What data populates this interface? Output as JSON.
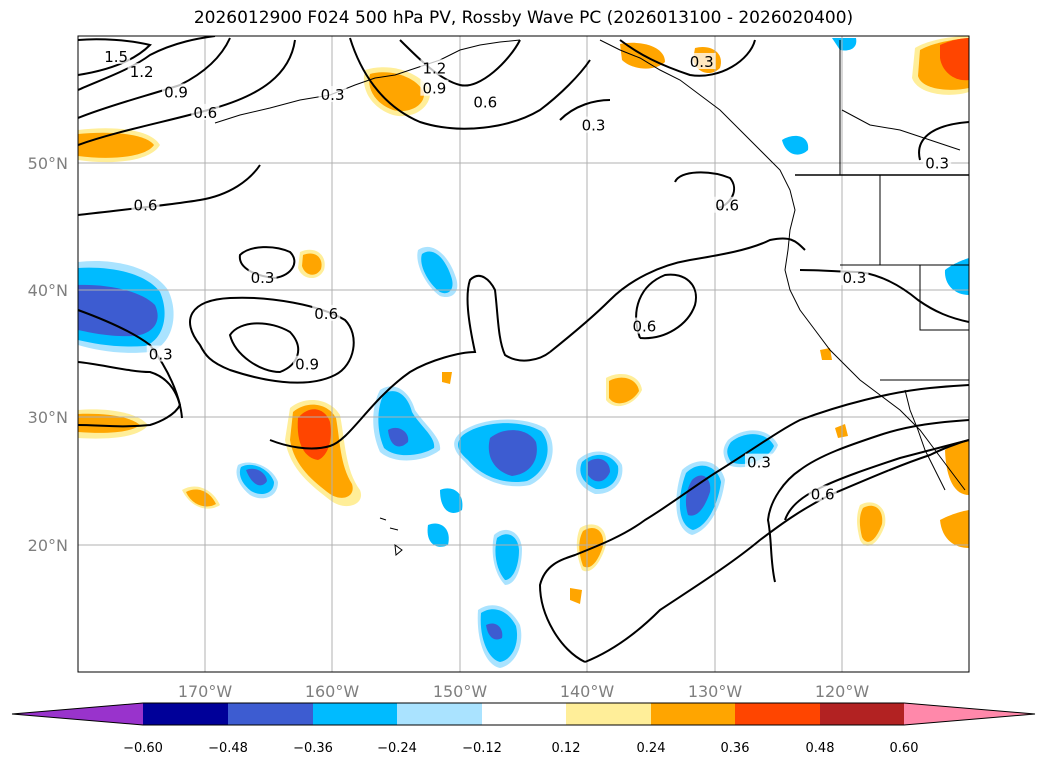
{
  "title": "2026012900 F024 500 hPa PV, Rossby Wave PC (2026013100 - 2026020400)",
  "map": {
    "lon_range": [
      -180,
      -110
    ],
    "lat_range": [
      10,
      60
    ],
    "lat_ticks": [
      {
        "value": 50,
        "label": "50°N"
      },
      {
        "value": 40,
        "label": "40°N"
      },
      {
        "value": 30,
        "label": "30°N"
      },
      {
        "value": 20,
        "label": "20°N"
      }
    ],
    "lon_ticks": [
      {
        "value": -170,
        "label": "170°W"
      },
      {
        "value": -160,
        "label": "160°W"
      },
      {
        "value": -150,
        "label": "150°W"
      },
      {
        "value": -140,
        "label": "140°W"
      },
      {
        "value": -130,
        "label": "130°W"
      },
      {
        "value": -120,
        "label": "120°W"
      }
    ],
    "contour_labels": [
      {
        "text": "1.5",
        "lon": -177.0,
        "lat": 58.2
      },
      {
        "text": "1.2",
        "lon": -175.0,
        "lat": 57.0
      },
      {
        "text": "0.9",
        "lon": -172.3,
        "lat": 55.4
      },
      {
        "text": "0.6",
        "lon": -170.0,
        "lat": 53.8
      },
      {
        "text": "0.3",
        "lon": -160.0,
        "lat": 55.2
      },
      {
        "text": "1.2",
        "lon": -152.0,
        "lat": 57.3
      },
      {
        "text": "0.9",
        "lon": -152.0,
        "lat": 55.7
      },
      {
        "text": "0.6",
        "lon": -148.0,
        "lat": 54.6
      },
      {
        "text": "0.3",
        "lon": -139.5,
        "lat": 52.8
      },
      {
        "text": "0.3",
        "lon": -131.0,
        "lat": 57.8
      },
      {
        "text": "0.3",
        "lon": -112.5,
        "lat": 49.8
      },
      {
        "text": "0.6",
        "lon": -174.7,
        "lat": 46.5
      },
      {
        "text": "0.6",
        "lon": -129.0,
        "lat": 46.5
      },
      {
        "text": "0.3",
        "lon": -165.5,
        "lat": 40.8
      },
      {
        "text": "0.6",
        "lon": -160.5,
        "lat": 38.0
      },
      {
        "text": "0.9",
        "lon": -162.0,
        "lat": 34.0
      },
      {
        "text": "0.3",
        "lon": -173.5,
        "lat": 34.8
      },
      {
        "text": "0.6",
        "lon": -135.5,
        "lat": 37.0
      },
      {
        "text": "0.3",
        "lon": -119.0,
        "lat": 40.8
      },
      {
        "text": "0.3",
        "lon": -126.5,
        "lat": 26.3
      },
      {
        "text": "0.6",
        "lon": -121.5,
        "lat": 23.8
      }
    ]
  },
  "colorbar": {
    "colors": [
      "#9933cc",
      "#000099",
      "#3d5cd1",
      "#00bbff",
      "#aae3ff",
      "#ffffff",
      "#ffee99",
      "#ffa500",
      "#ff4500",
      "#b22222",
      "#ff88aa"
    ],
    "tick_labels": [
      "−0.60",
      "−0.48",
      "−0.36",
      "−0.24",
      "−0.12",
      "0.12",
      "0.24",
      "0.36",
      "0.48",
      "0.60"
    ]
  }
}
